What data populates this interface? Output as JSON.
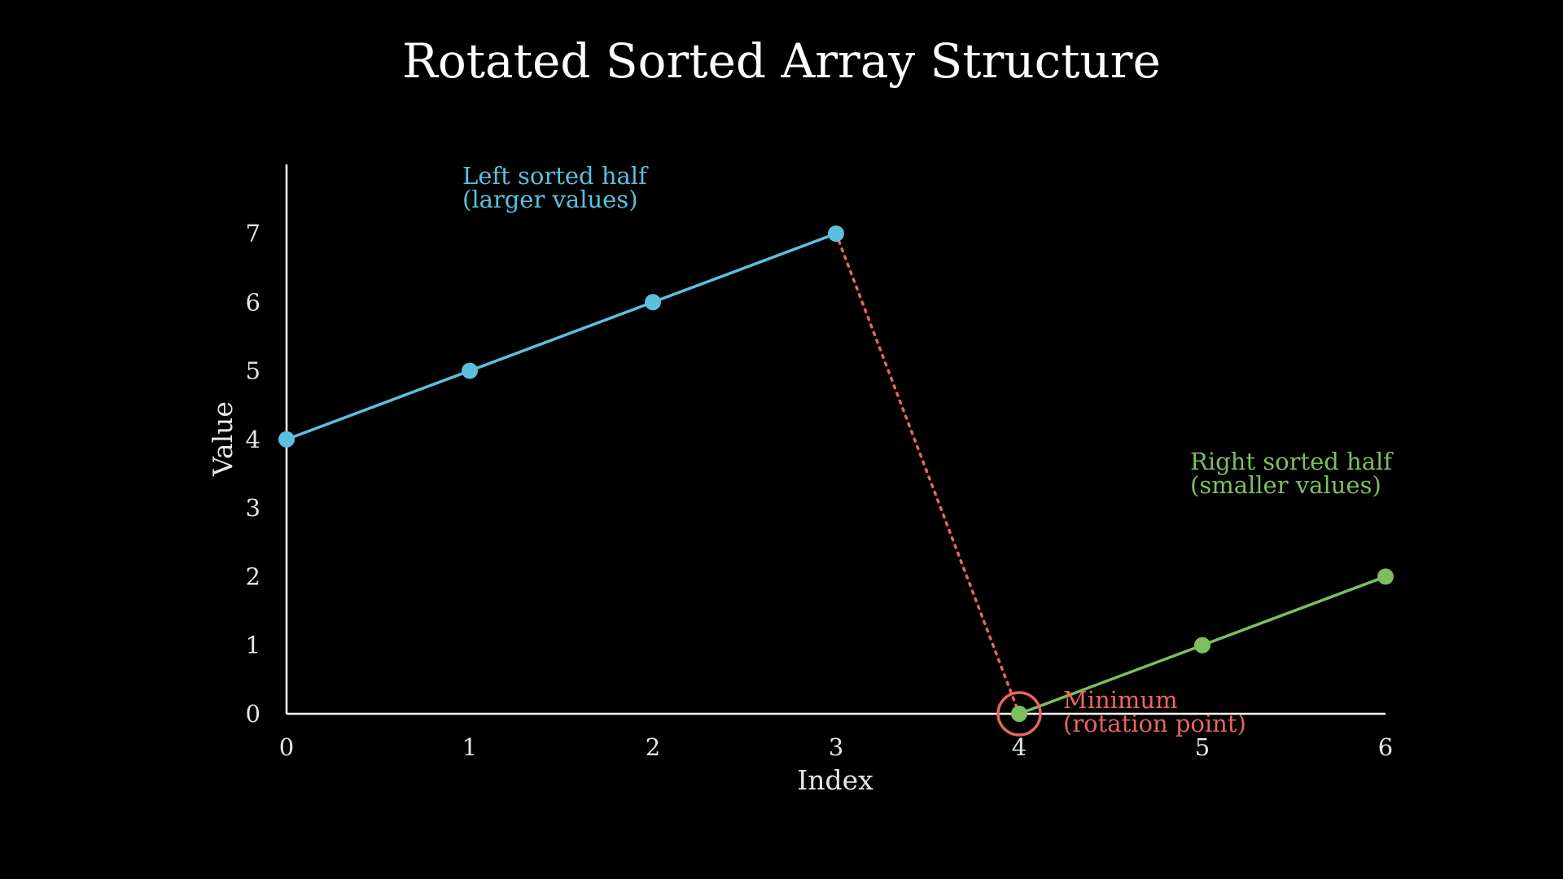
{
  "colors": {
    "background": "#000000",
    "axis": "#ffffff",
    "text": "#e6e6e6",
    "left_half": "#5bc0de",
    "right_half": "#7dbf5f",
    "rotation": "#e8665c"
  },
  "chart_data": {
    "type": "line",
    "title": "Rotated Sorted Array Structure",
    "xlabel": "Index",
    "ylabel": "Value",
    "xlim": [
      0,
      6
    ],
    "ylim": [
      0,
      7
    ],
    "grid": false,
    "xticks": [
      "0",
      "1",
      "2",
      "3",
      "4",
      "5",
      "6"
    ],
    "yticks": [
      "0",
      "1",
      "2",
      "3",
      "4",
      "5",
      "6",
      "7"
    ],
    "series": [
      {
        "x": [
          0,
          1,
          2,
          3
        ],
        "values": [
          4,
          5,
          6,
          7
        ],
        "color": "#5bc0de"
      },
      {
        "x": [
          4,
          5,
          6
        ],
        "values": [
          0,
          1,
          2
        ],
        "color": "#7dbf5f"
      }
    ],
    "rotation_drop": {
      "from": [
        3,
        7
      ],
      "to": [
        4,
        0
      ],
      "style": "dotted",
      "color": "#e8665c"
    },
    "minimum_marker": {
      "x": 4,
      "y": 0,
      "color": "#e8665c"
    },
    "annotations": [
      {
        "lines": [
          "Left sorted half",
          "(larger values)"
        ],
        "color": "#5bc0de"
      },
      {
        "lines": [
          "Right sorted half",
          "(smaller values)"
        ],
        "color": "#7dbf5f"
      },
      {
        "lines": [
          "Minimum",
          "(rotation point)"
        ],
        "color": "#e8665c"
      }
    ]
  }
}
